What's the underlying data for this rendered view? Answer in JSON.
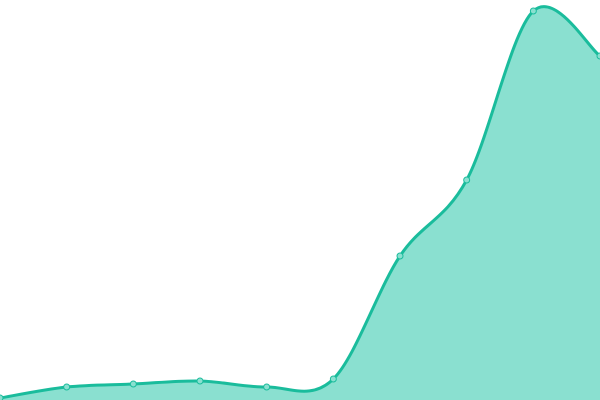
{
  "chart_data": {
    "type": "area",
    "title": "",
    "xlabel": "",
    "ylabel": "",
    "x": [
      0,
      1,
      2,
      3,
      4,
      5,
      6,
      7,
      8,
      9
    ],
    "values": [
      2,
      13,
      16,
      19,
      13,
      21,
      144,
      220,
      389,
      344
    ],
    "ylim": [
      0,
      400
    ],
    "grid": false,
    "smooth": true,
    "colors": {
      "line": "#1abc9c",
      "fill": "#8ae0d0",
      "marker_fill": "#8ae0d0",
      "marker_stroke": "#1abc9c"
    }
  }
}
